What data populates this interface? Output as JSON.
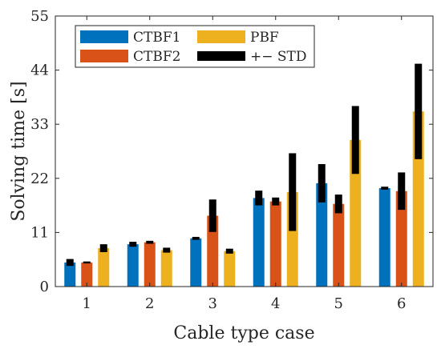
{
  "chart_data": {
    "type": "bar",
    "title": "",
    "xlabel": "Cable type case",
    "ylabel": "Solving time [s]",
    "categories": [
      "1",
      "2",
      "3",
      "4",
      "5",
      "6"
    ],
    "ylim": [
      0,
      55
    ],
    "yticks": [
      "0",
      "11",
      "22",
      "33",
      "44",
      "55"
    ],
    "grid": false,
    "legend_position": "top-left",
    "series": [
      {
        "name": "CTBF1",
        "color": "#0072BD",
        "values": [
          4.9,
          8.6,
          9.8,
          18.0,
          21.0,
          20.0
        ],
        "std": [
          0.7,
          0.5,
          0.3,
          1.5,
          3.9,
          0.3
        ]
      },
      {
        "name": "CTBF2",
        "color": "#D95319",
        "values": [
          4.9,
          9.0,
          14.4,
          17.3,
          16.8,
          19.4
        ],
        "std": [
          0.2,
          0.3,
          3.3,
          0.8,
          1.9,
          3.8
        ]
      },
      {
        "name": "PBF",
        "color": "#EDB120",
        "values": [
          7.8,
          7.4,
          7.2,
          19.2,
          29.8,
          35.6
        ],
        "std": [
          0.8,
          0.5,
          0.5,
          7.9,
          6.9,
          9.7
        ]
      }
    ],
    "std_legend_label": "+− STD",
    "std_color": "#000000"
  }
}
